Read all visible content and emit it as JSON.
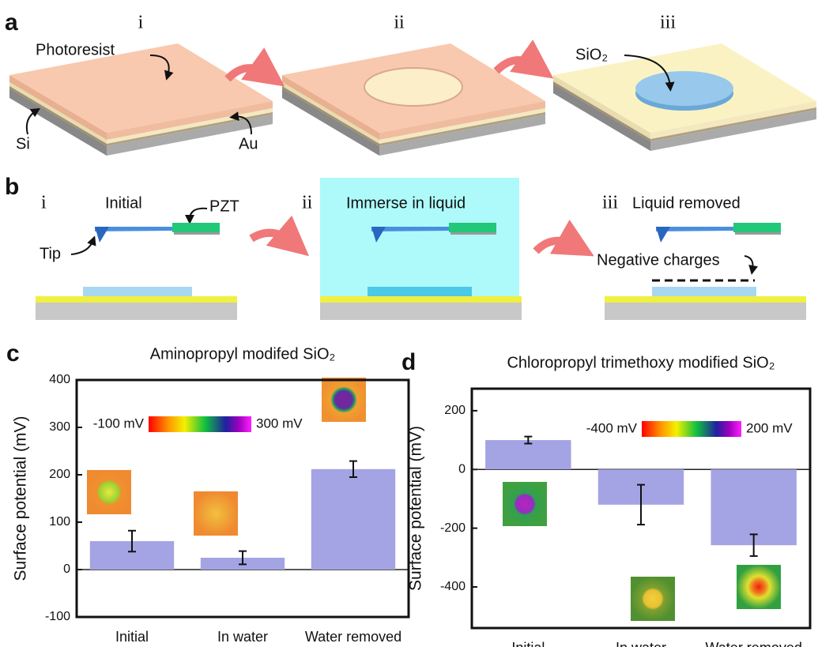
{
  "panel_a": {
    "label": "a",
    "steps": [
      "i",
      "ii",
      "iii"
    ],
    "photoresist": "Photoresist",
    "si": "Si",
    "au": "Au",
    "sio2": "SiO₂"
  },
  "panel_b": {
    "label": "b",
    "steps": [
      "i",
      "ii",
      "iii"
    ],
    "captions": [
      "Initial",
      "Immerse in liquid",
      "Liquid removed"
    ],
    "pzt": "PZT",
    "tip": "Tip",
    "negative_charges": "Negative charges"
  },
  "chart_data": [
    {
      "type": "bar",
      "panel_label": "c",
      "title": "Aminopropyl modifed SiO₂",
      "y_label": "Surface potential (mV)",
      "categories": [
        "Initial",
        "In water",
        "Water removed"
      ],
      "values": [
        60,
        25,
        212
      ],
      "errors": [
        22,
        14,
        17
      ],
      "color": "#a4a4e4",
      "ylim": [
        -100,
        400
      ],
      "yticks": [
        -100,
        0,
        100,
        200,
        300,
        400
      ],
      "colorbar_labels": [
        "-100 mV",
        "300 mV"
      ]
    },
    {
      "type": "bar",
      "panel_label": "d",
      "title": "Chloropropyl trimethoxy modified SiO₂",
      "y_label": "Surface potential (mV)",
      "categories": [
        "Initial",
        "In water",
        "Water removed"
      ],
      "values": [
        100,
        -120,
        -258
      ],
      "errors": [
        12,
        68,
        37
      ],
      "color": "#a4a4e4",
      "ylim": [
        -540,
        275
      ],
      "yticks": [
        -400,
        -200,
        0,
        200
      ],
      "colorbar_labels": [
        "-400 mV",
        "200 mV"
      ]
    }
  ]
}
